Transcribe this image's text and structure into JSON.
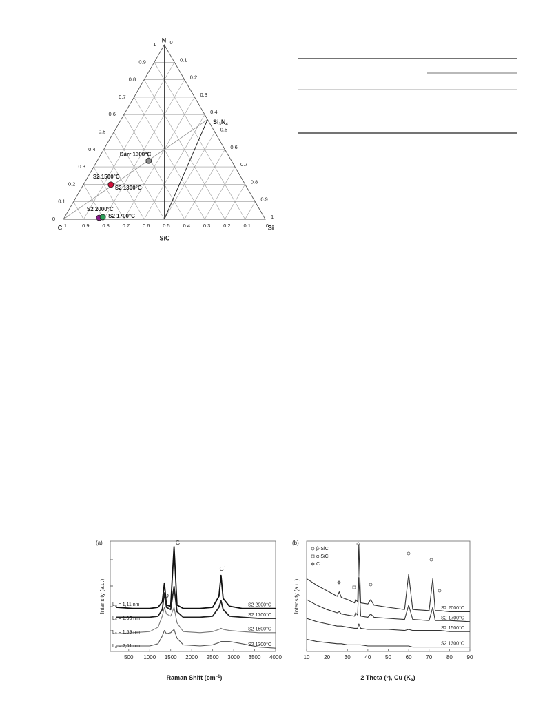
{
  "ternary": {
    "apex_labels": {
      "top": "N",
      "left": "C",
      "right": "Si"
    },
    "sic_label": "SiC",
    "si3n4": {
      "main1": "Si",
      "sub1": "3",
      "main2": "N",
      "sub2": "4"
    },
    "ticks": [
      0,
      0.1,
      0.2,
      0.3,
      0.4,
      0.5,
      0.6,
      0.7,
      0.8,
      0.9,
      1
    ],
    "points": [
      {
        "label": "Darr 1300°C",
        "color": "#8c8c8c",
        "C": 0.41,
        "Si": 0.255,
        "N": 0.335
      },
      {
        "label": "S2 1500°C",
        "color": "#1f7fd0",
        "C": 0.666,
        "Si": 0.136,
        "N": 0.198
      },
      {
        "label": "S2 1300°C",
        "color": "#d0103a",
        "C": 0.666,
        "Si": 0.136,
        "N": 0.198
      },
      {
        "label": "S2 2000°C",
        "color": "#8b1a8b",
        "C": 0.819,
        "Si": 0.173,
        "N": 0.008
      },
      {
        "label": "S2 1700°C",
        "color": "#2e9e5a",
        "C": 0.799,
        "Si": 0.189,
        "N": 0.012
      }
    ]
  },
  "figure_a": {
    "panel": "(a)",
    "y_label": "Intensity (a.u.)",
    "x_label": {
      "main": "Raman Shift (cm",
      "sup": "−1",
      "end": ")"
    },
    "xlim": [
      60,
      4000
    ],
    "xticks": [
      500,
      1000,
      1500,
      2000,
      2500,
      3000,
      3500,
      4000
    ],
    "ylim": [
      0,
      100
    ],
    "peak_labels": [
      "D",
      "G",
      "G´"
    ],
    "la_symbol": "L",
    "la_sub": "a",
    "la_values": [
      "= 1,11 nm",
      "= 1,35 nm",
      "= 1,59 nm",
      "= 2,01 nm"
    ],
    "x": [
      200,
      600,
      1000,
      1200,
      1300,
      1350,
      1400,
      1500,
      1580,
      1650,
      1800,
      2200,
      2500,
      2650,
      2700,
      2750,
      2900,
      3200,
      3600,
      4000
    ],
    "series": [
      {
        "name": "S2 2000°C",
        "color": "#111111",
        "values": [
          40,
          39,
          39,
          40,
          45,
          62,
          42,
          41,
          95,
          42,
          39,
          39,
          40,
          50,
          69,
          48,
          41,
          39,
          39,
          39
        ]
      },
      {
        "name": "S2 1700°C",
        "color": "#222222",
        "values": [
          31,
          31,
          31,
          32,
          38,
          53,
          40,
          38,
          59,
          36,
          31,
          31,
          32,
          40,
          46,
          38,
          32,
          31,
          30,
          30
        ]
      },
      {
        "name": "S2 1500°C",
        "color": "#777777",
        "values": [
          16,
          17,
          18,
          22,
          32,
          40,
          34,
          32,
          40,
          26,
          18,
          17,
          18,
          20,
          21,
          20,
          19,
          18,
          17,
          17
        ]
      },
      {
        "name": "S2 1300°C",
        "color": "#555555",
        "values": [
          5,
          5,
          5,
          7,
          14,
          19,
          16,
          17,
          20,
          12,
          6,
          5,
          6,
          8,
          9,
          9,
          9,
          7,
          4,
          3
        ]
      }
    ]
  },
  "figure_b": {
    "panel": "(b)",
    "y_label": "Intensity (a.u.)",
    "x_label": {
      "main": "2 Theta (°), Cu (K",
      "sub": "α",
      "end": ")"
    },
    "legend": [
      "β-SiC",
      "α-SiC",
      "C"
    ],
    "xlim": [
      10,
      90
    ],
    "xticks": [
      10,
      20,
      30,
      40,
      50,
      60,
      70,
      80,
      90
    ],
    "ylim": [
      0,
      100
    ],
    "x": [
      10,
      15,
      20,
      25,
      26,
      27,
      30,
      33.5,
      34,
      35,
      35.6,
      36.5,
      40,
      41.4,
      43,
      50,
      58,
      60,
      62,
      70,
      71.8,
      73,
      75.5,
      80,
      90
    ],
    "series": [
      {
        "name": "S2 2000°C",
        "color": "#333333",
        "values": [
          66,
          60,
          55,
          50,
          54,
          49,
          47,
          44,
          47,
          45,
          97,
          44,
          43,
          47,
          42,
          40,
          38,
          70,
          38,
          37,
          66,
          37,
          37,
          36,
          36
        ]
      },
      {
        "name": "S2 1700°C",
        "color": "#333333",
        "values": [
          47,
          42,
          38,
          35,
          36,
          34,
          33,
          32,
          35,
          33,
          67,
          32,
          31,
          34,
          31,
          30,
          29,
          42,
          29,
          28,
          40,
          28,
          28,
          28,
          27
        ]
      },
      {
        "name": "S2 1500°C",
        "color": "#333333",
        "values": [
          30,
          27,
          25,
          23,
          23,
          23,
          22,
          21,
          21,
          21,
          25,
          21,
          20,
          20,
          20,
          20,
          19,
          20,
          19,
          19,
          19,
          19,
          19,
          18,
          18
        ]
      },
      {
        "name": "S2 1300°C",
        "color": "#333333",
        "values": [
          11,
          9,
          8,
          7,
          7,
          7,
          6,
          6,
          6,
          6,
          6,
          6,
          5,
          5,
          5,
          5,
          5,
          5,
          4,
          4,
          4,
          4,
          4,
          4,
          4
        ]
      }
    ]
  }
}
